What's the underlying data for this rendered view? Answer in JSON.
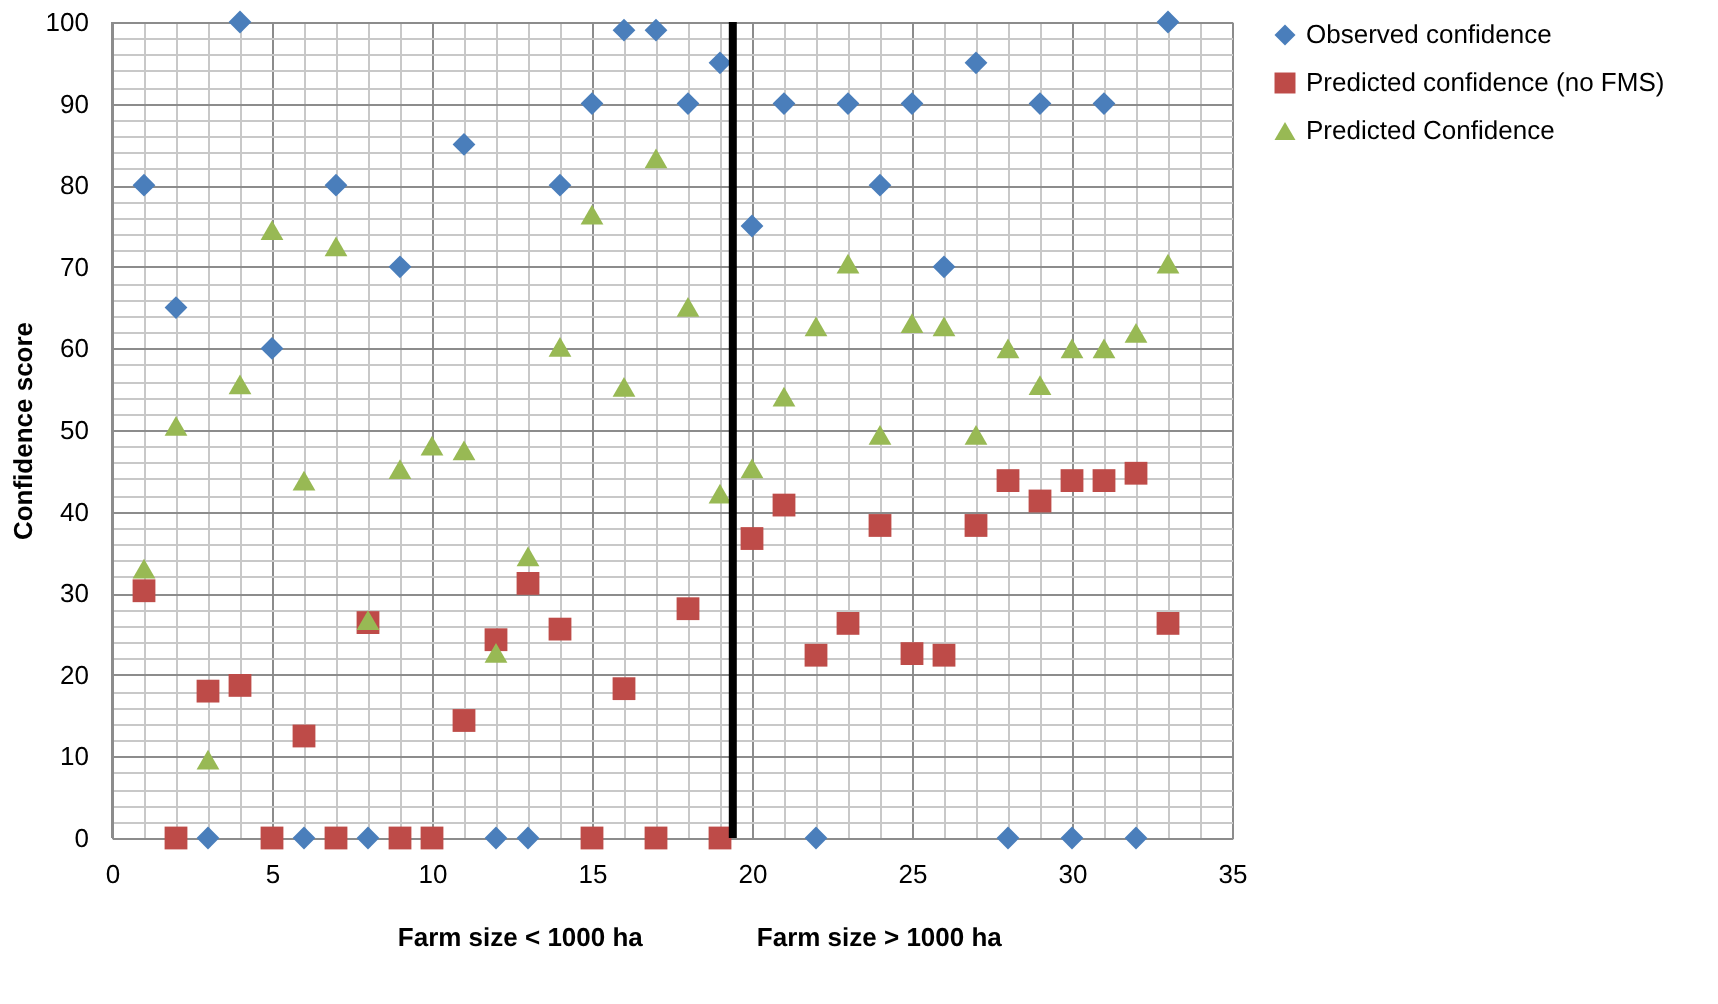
{
  "chart_data": {
    "type": "scatter",
    "xlabel": null,
    "ylabel": "Confidence score",
    "x": [
      1,
      2,
      3,
      4,
      5,
      6,
      7,
      8,
      9,
      10,
      11,
      12,
      13,
      14,
      15,
      16,
      17,
      18,
      19,
      20,
      21,
      22,
      23,
      24,
      25,
      26,
      27,
      28,
      29,
      30,
      31,
      32,
      33
    ],
    "series": [
      {
        "name": "Observed confidence",
        "color": "#4a7ebb",
        "marker": "diamond",
        "values": [
          80,
          65,
          0,
          100,
          60,
          0,
          80,
          0,
          70,
          null,
          85,
          0,
          0,
          80,
          90,
          99,
          99,
          90,
          95,
          75,
          90,
          0,
          90,
          80,
          90,
          70,
          95,
          0,
          90,
          0,
          90,
          0,
          100
        ]
      },
      {
        "name": "Predicted confidence (no FMS)",
        "color": "#be4b48",
        "marker": "square",
        "values": [
          30.3,
          0,
          18.0,
          18.7,
          0,
          12.5,
          0,
          26.4,
          0,
          0,
          14.4,
          24.3,
          31.2,
          25.6,
          0,
          18.3,
          0,
          28.1,
          0,
          36.7,
          40.8,
          22.4,
          26.3,
          38.3,
          22.6,
          22.4,
          38.3,
          43.8,
          41.3,
          43.8,
          43.8,
          44.7,
          26.3
        ]
      },
      {
        "name": "Predicted Confidence",
        "color": "#98b954",
        "marker": "triangle",
        "values": [
          33,
          50.5,
          9.6,
          55.6,
          74.5,
          43.8,
          72.5,
          26.7,
          45.2,
          48.1,
          47.5,
          22.7,
          34.5,
          60.2,
          76.4,
          55.3,
          83.3,
          65.1,
          42.2,
          45.3,
          54.1,
          62.7,
          70.4,
          49.4,
          63.1,
          62.7,
          49.4,
          60,
          55.5,
          60,
          60,
          61.9,
          70.4
        ]
      }
    ],
    "xlim": [
      0,
      35
    ],
    "xticks": [
      0,
      5,
      10,
      15,
      20,
      25,
      30,
      35
    ],
    "ylim": [
      0,
      100
    ],
    "yticks": [
      0,
      10,
      20,
      30,
      40,
      50,
      60,
      70,
      80,
      90,
      100
    ],
    "ref_lines": [
      {
        "axis": "x",
        "value": 19.4,
        "color": "#000000"
      }
    ],
    "annotations": [
      "Farm size < 1000 ha",
      "Farm size > 1000 ha"
    ],
    "grid": true,
    "legend": "right"
  }
}
